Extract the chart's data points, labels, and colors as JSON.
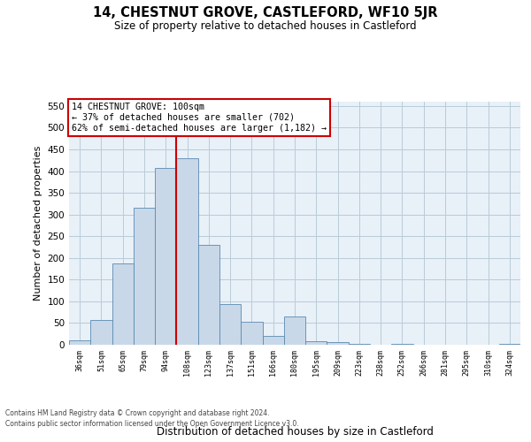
{
  "title": "14, CHESTNUT GROVE, CASTLEFORD, WF10 5JR",
  "subtitle": "Size of property relative to detached houses in Castleford",
  "xlabel": "Distribution of detached houses by size in Castleford",
  "ylabel": "Number of detached properties",
  "categories": [
    "36sqm",
    "51sqm",
    "65sqm",
    "79sqm",
    "94sqm",
    "108sqm",
    "123sqm",
    "137sqm",
    "151sqm",
    "166sqm",
    "180sqm",
    "195sqm",
    "209sqm",
    "223sqm",
    "238sqm",
    "252sqm",
    "266sqm",
    "281sqm",
    "295sqm",
    "310sqm",
    "324sqm"
  ],
  "values": [
    10,
    58,
    187,
    315,
    407,
    430,
    230,
    93,
    53,
    20,
    65,
    8,
    7,
    3,
    0,
    2,
    0,
    0,
    0,
    0,
    2
  ],
  "bar_color": "#c8d8e8",
  "bar_edge_color": "#5a8ab0",
  "vline_x_idx": 4.5,
  "vline_color": "#cc0000",
  "annotation_line1": "14 CHESTNUT GROVE: 100sqm",
  "annotation_line2": "← 37% of detached houses are smaller (702)",
  "annotation_line3": "62% of semi-detached houses are larger (1,182) →",
  "annotation_box_edgecolor": "#cc0000",
  "annotation_box_facecolor": "#ffffff",
  "ylim_max": 560,
  "yticks": [
    0,
    50,
    100,
    150,
    200,
    250,
    300,
    350,
    400,
    450,
    500,
    550
  ],
  "grid_color": "#b8ccd8",
  "bg_color": "#e8f0f8",
  "footer1": "Contains HM Land Registry data © Crown copyright and database right 2024.",
  "footer2": "Contains public sector information licensed under the Open Government Licence v3.0."
}
